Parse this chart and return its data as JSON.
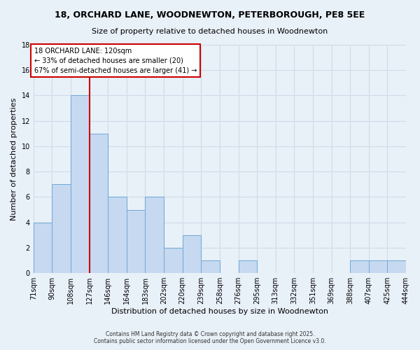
{
  "title": "18, ORCHARD LANE, WOODNEWTON, PETERBOROUGH, PE8 5EE",
  "subtitle": "Size of property relative to detached houses in Woodnewton",
  "xlabel": "Distribution of detached houses by size in Woodnewton",
  "ylabel": "Number of detached properties",
  "bar_values": [
    4,
    7,
    14,
    11,
    6,
    5,
    6,
    2,
    3,
    1,
    0,
    1,
    0,
    0,
    0,
    0,
    0,
    1,
    1,
    1
  ],
  "bar_labels": [
    "71sqm",
    "90sqm",
    "108sqm",
    "127sqm",
    "146sqm",
    "164sqm",
    "183sqm",
    "202sqm",
    "220sqm",
    "239sqm",
    "258sqm",
    "276sqm",
    "295sqm",
    "313sqm",
    "332sqm",
    "351sqm",
    "369sqm",
    "388sqm",
    "407sqm",
    "425sqm",
    "444sqm"
  ],
  "bar_color": "#c6d9f0",
  "bar_edge_color": "#6fa8d6",
  "background_color": "#e8f0f8",
  "grid_color": "#d0dce8",
  "annotation_text": "18 ORCHARD LANE: 120sqm\n← 33% of detached houses are smaller (20)\n67% of semi-detached houses are larger (41) →",
  "annotation_box_color": "#ffffff",
  "annotation_box_edge": "#cc0000",
  "ylim": [
    0,
    18
  ],
  "yticks": [
    0,
    2,
    4,
    6,
    8,
    10,
    12,
    14,
    16,
    18
  ],
  "footer1": "Contains HM Land Registry data © Crown copyright and database right 2025.",
  "footer2": "Contains public sector information licensed under the Open Government Licence v3.0.",
  "red_line_color": "#cc0000",
  "title_fontsize": 9,
  "subtitle_fontsize": 8,
  "ylabel_fontsize": 8,
  "xlabel_fontsize": 8,
  "tick_fontsize": 7,
  "annotation_fontsize": 7,
  "footer_fontsize": 5.5
}
